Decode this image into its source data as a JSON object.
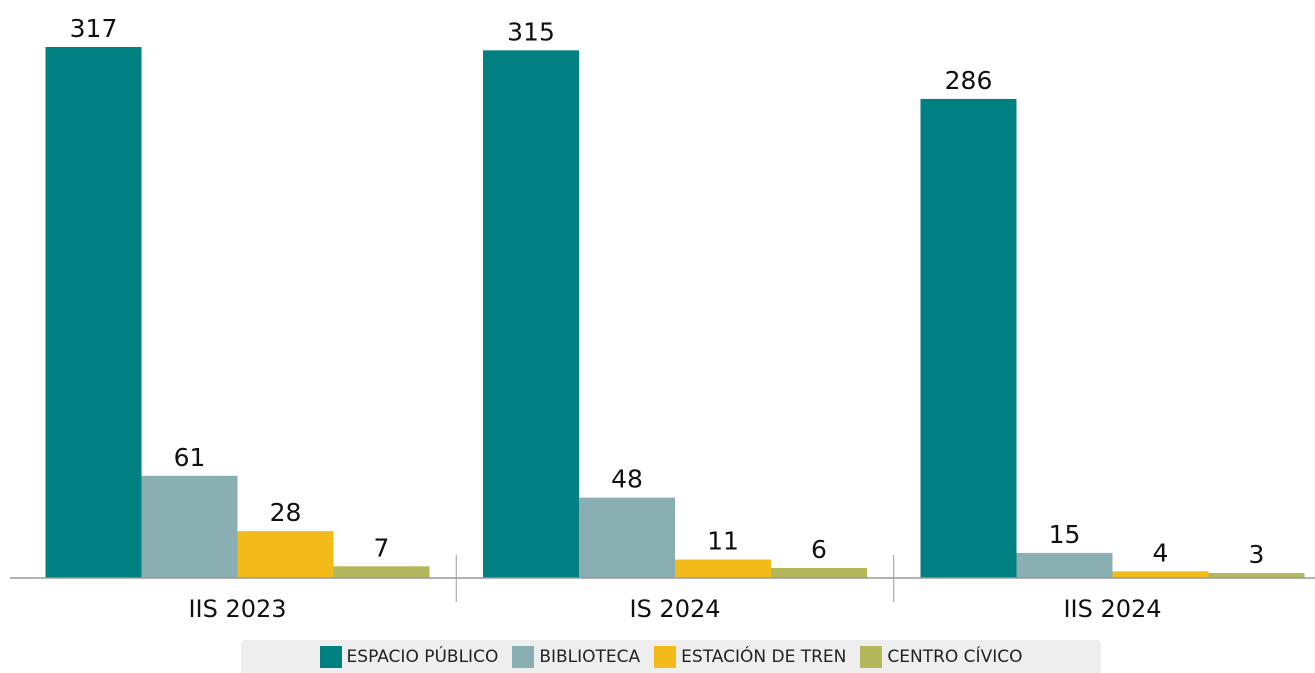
{
  "chart_data": {
    "type": "bar",
    "categories": [
      "IIS 2023",
      "IS 2024",
      "IIS 2024"
    ],
    "series": [
      {
        "name": "ESPACIO PÚBLICO",
        "color": "#008080",
        "values": [
          317,
          315,
          286
        ]
      },
      {
        "name": "BIBLIOTECA",
        "color": "#8aafb3",
        "values": [
          61,
          48,
          15
        ]
      },
      {
        "name": "ESTACIÓN DE TREN",
        "color": "#f2bb1a",
        "values": [
          28,
          11,
          4
        ]
      },
      {
        "name": "CENTRO CÍVICO",
        "color": "#b5b85a",
        "values": [
          7,
          6,
          3
        ]
      }
    ],
    "legend": "bottom"
  }
}
